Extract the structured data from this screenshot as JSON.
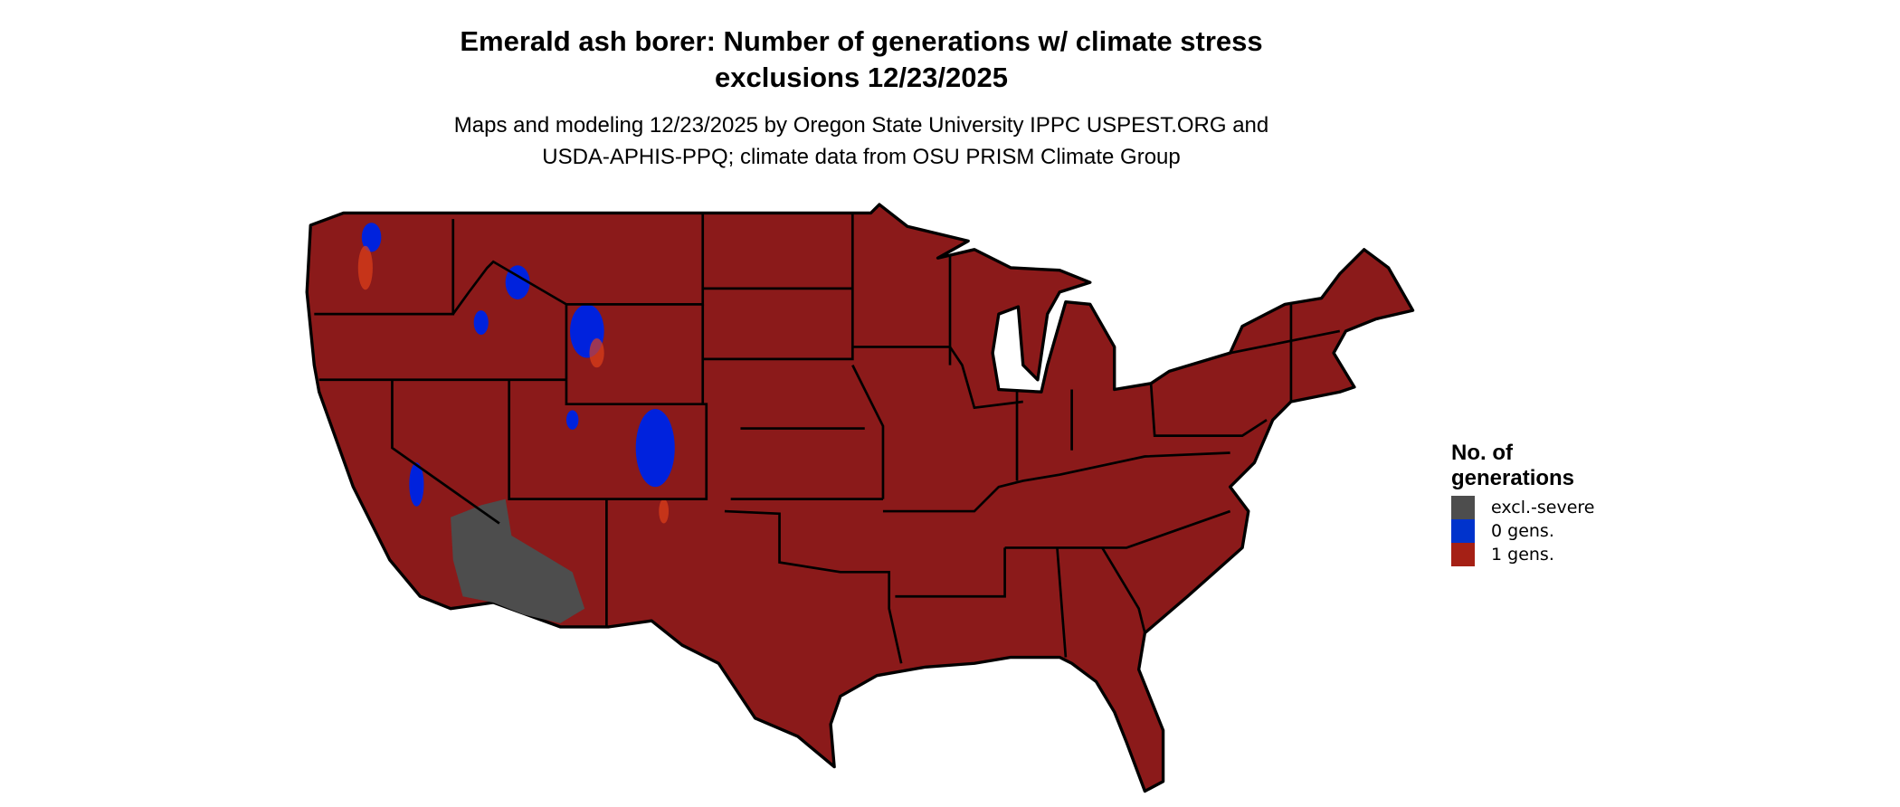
{
  "title": {
    "line1": "Emerald ash borer: Number of generations w/ climate stress",
    "line2": "exclusions 12/23/2025"
  },
  "subtitle": {
    "line1": "Maps and modeling 12/23/2025 by Oregon State University IPPC USPEST.ORG and",
    "line2": "USDA-APHIS-PPQ; climate data from OSU PRISM Climate Group"
  },
  "map": {
    "region": "Contiguous United States",
    "dominant_class": "1 gens."
  },
  "legend": {
    "title_line1": "No. of",
    "title_line2": "generations",
    "items": [
      {
        "label": "excl.-severe",
        "color": "#4d4d4d"
      },
      {
        "label": "0 gens.",
        "color": "#0033cc"
      },
      {
        "label": "1 gens.",
        "color": "#a52015"
      }
    ]
  },
  "colors": {
    "map_fill": "#8b1a1a",
    "state_border": "#000000"
  }
}
